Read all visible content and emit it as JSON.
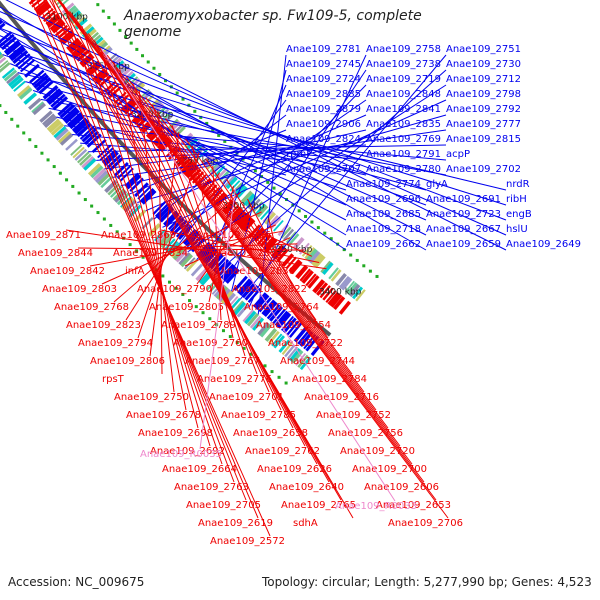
{
  "title": "Anaeromyxobacter sp. Fw109-5, complete genome",
  "footer": {
    "accession_label": "Accession:",
    "accession": "NC_009675",
    "topology_label": "Topology:",
    "topology": "circular",
    "length_label": "Length:",
    "length": "5,277,990 bp",
    "genes_label": "Genes:",
    "genes": "4,523"
  },
  "colors": {
    "forward_strand": "#0000ee",
    "reverse_strand": "#ee0000",
    "rna_feature": "#ee88cc",
    "backbone": "#555555",
    "gc_marks": "#22aa22"
  },
  "ticks": [
    "3400 kbp",
    "3350 kbp",
    "3300 kbp",
    "3250 kbp",
    "3200 kbp",
    "3150 kbp",
    "3100 kbp",
    "3050 kbp",
    "3000 kbp"
  ],
  "blue_labels": [
    "Anae109_2781",
    "Anae109_2758",
    "Anae109_2751",
    "Anae109_2745",
    "Anae109_2738",
    "Anae109_2730",
    "Anae109_2724",
    "Anae109_2719",
    "Anae109_2712",
    "Anae109_2885",
    "Anae109_2848",
    "Anae109_2798",
    "Anae109_2879",
    "Anae109_2841",
    "Anae109_2792",
    "Anae109_2906",
    "Anae109_2835",
    "Anae109_2777",
    "Anae109_2824",
    "Anae109_2769",
    "Anae109_2815",
    "rpmF",
    "Anae109_2791",
    "acpP",
    "Anae109_2707",
    "Anae109_2780",
    "Anae109_2702",
    "Anae109_2774",
    "glyA",
    "nrdR",
    "Anae109_2696",
    "Anae109_2691",
    "ribH",
    "Anae109_2685",
    "Anae109_2723",
    "engB",
    "Anae109_2718",
    "Anae109_2667",
    "hslU",
    "Anae109_2662",
    "Anae109_2659",
    "Anae109_2649"
  ],
  "red_labels": [
    "Anae109_2871",
    "Anae109_2869",
    "Anae109_2856",
    "Anae109_2844",
    "Anae109_2834",
    "Anae109_2821",
    "Anae109_2842",
    "infA",
    "Anae109_2836",
    "Anae109_2803",
    "Anae109_2790",
    "Anae109_2822",
    "Anae109_2768",
    "Anae109_2805",
    "Anae109_2764",
    "Anae109_2823",
    "Anae109_2789",
    "Anae109_2754",
    "Anae109_2794",
    "Anae109_2760",
    "Anae109_2722",
    "Anae109_2806",
    "Anae109_2767",
    "Anae109_2744",
    "rpsT",
    "Anae109_2776",
    "Anae109_2784",
    "Anae109_2750",
    "Anae109_2701",
    "Anae109_2716",
    "Anae109_2678",
    "Anae109_2785",
    "Anae109_2752",
    "Anae109_2698",
    "Anae109_2658",
    "Anae109_2756",
    "Anae109_2692",
    "Anae109_2762",
    "Anae109_2720",
    "Anae109_2664",
    "Anae109_2626",
    "Anae109_2700",
    "Anae109_2763",
    "Anae109_2640",
    "Anae109_2606",
    "Anae109_2705",
    "Anae109_2765",
    "Anae109_2653",
    "Anae109_2619",
    "sdhA",
    "Anae109_2706",
    "Anae109_2572"
  ],
  "pink_labels": [
    "Anae109_R0035",
    "Anae109_R0033"
  ]
}
